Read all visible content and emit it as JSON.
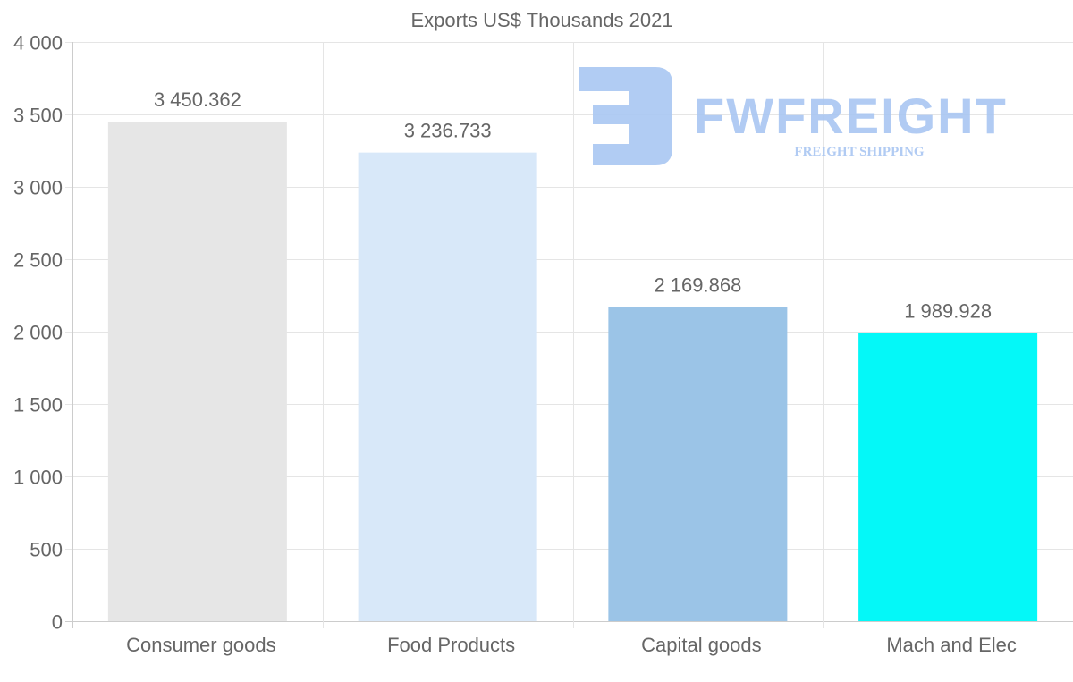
{
  "chart_data": {
    "type": "bar",
    "title": "Exports US$ Thousands 2021",
    "xlabel": "",
    "ylabel": "",
    "categories": [
      "Consumer goods",
      "Food Products",
      "Capital goods",
      "Mach and Elec"
    ],
    "values": [
      3450.362,
      3236.733,
      2169.868,
      1989.928
    ],
    "value_labels": [
      "3 450.362",
      "3 236.733",
      "2 169.868",
      "1 989.928"
    ],
    "colors": [
      "#e6e6e6",
      "#d8e8f9",
      "#9bc4e7",
      "#04f8f8"
    ],
    "ylim": [
      0,
      4000
    ],
    "yticks": [
      0,
      500,
      1000,
      1500,
      2000,
      2500,
      3000,
      3500,
      4000
    ],
    "ytick_labels": [
      "0",
      "500",
      "1 000",
      "1 500",
      "2 000",
      "2 500",
      "3 000",
      "3 500",
      "4 000"
    ],
    "grid": true,
    "legend": "none"
  },
  "watermark": {
    "brand": "FWFREIGHT",
    "tagline": "FREIGHT SHIPPING",
    "color": "#a9c6f2"
  }
}
